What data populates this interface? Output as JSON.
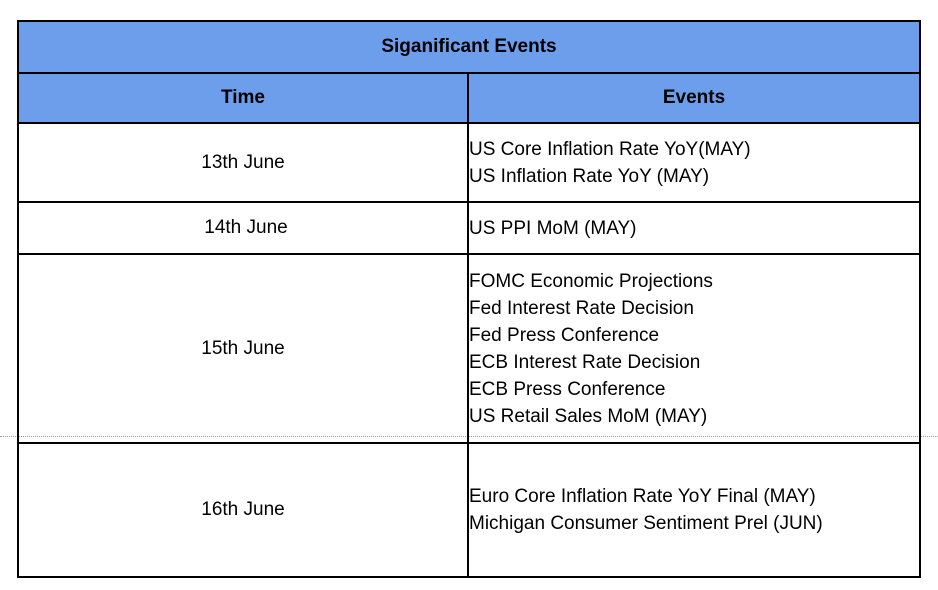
{
  "table": {
    "title": "Siganificant Events",
    "headers": {
      "time": "Time",
      "events": "Events"
    },
    "rows": [
      {
        "time": "13th June",
        "events": [
          "US Core Inflation Rate YoY(MAY)",
          "US Inflation Rate YoY (MAY)"
        ]
      },
      {
        "time": "14th June",
        "events": [
          "US PPI MoM (MAY)"
        ]
      },
      {
        "time": "15th June",
        "events": [
          "FOMC Economic Projections",
          "Fed Interest Rate Decision",
          "Fed Press Conference",
          "ECB Interest Rate Decision",
          "ECB Press Conference",
          "US Retail Sales MoM (MAY)"
        ]
      },
      {
        "time": "16th June",
        "events": [
          "Euro Core Inflation Rate YoY Final (MAY)",
          "Michigan Consumer Sentiment Prel (JUN)"
        ]
      }
    ]
  },
  "colors": {
    "header_background": "#6d9eeb",
    "border": "#000000"
  }
}
